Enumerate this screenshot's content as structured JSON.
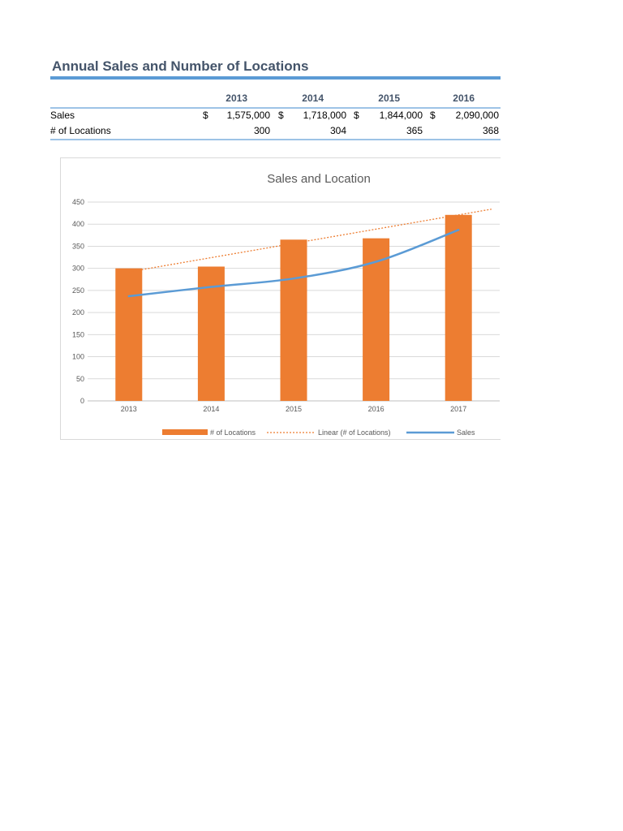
{
  "sheet": {
    "title": "Annual Sales and Number of Locations",
    "table": {
      "years": [
        "2013",
        "2014",
        "2015",
        "2016"
      ],
      "rows": [
        {
          "label": "Sales",
          "currency": "$",
          "values": [
            "1,575,000",
            "1,718,000",
            "1,844,000",
            "2,090,000"
          ]
        },
        {
          "label": "# of Locations",
          "values": [
            "300",
            "304",
            "365",
            "368"
          ]
        }
      ]
    }
  },
  "colors": {
    "bars": "#ed7d31",
    "sales_line": "#5b9bd5",
    "trendline": "#ed7d31",
    "accent_rule": "#5b9bd5"
  },
  "chart_data": {
    "type": "bar",
    "title": "Sales and Location",
    "categories": [
      "2013",
      "2014",
      "2015",
      "2016",
      "2017"
    ],
    "ylim": [
      0,
      450
    ],
    "yticks": [
      0,
      50,
      100,
      150,
      200,
      250,
      300,
      350,
      400,
      450
    ],
    "grid": true,
    "legend": "bottom",
    "series": [
      {
        "name": "# of Locations",
        "kind": "bar",
        "values": [
          300,
          304,
          365,
          368,
          421
        ]
      },
      {
        "name": "Linear (# of Locations)",
        "kind": "trendline",
        "values": [
          292,
          324,
          357,
          389,
          421
        ]
      },
      {
        "name": "Sales",
        "kind": "line",
        "values": [
          237,
          258,
          277,
          315,
          387
        ]
      }
    ]
  }
}
